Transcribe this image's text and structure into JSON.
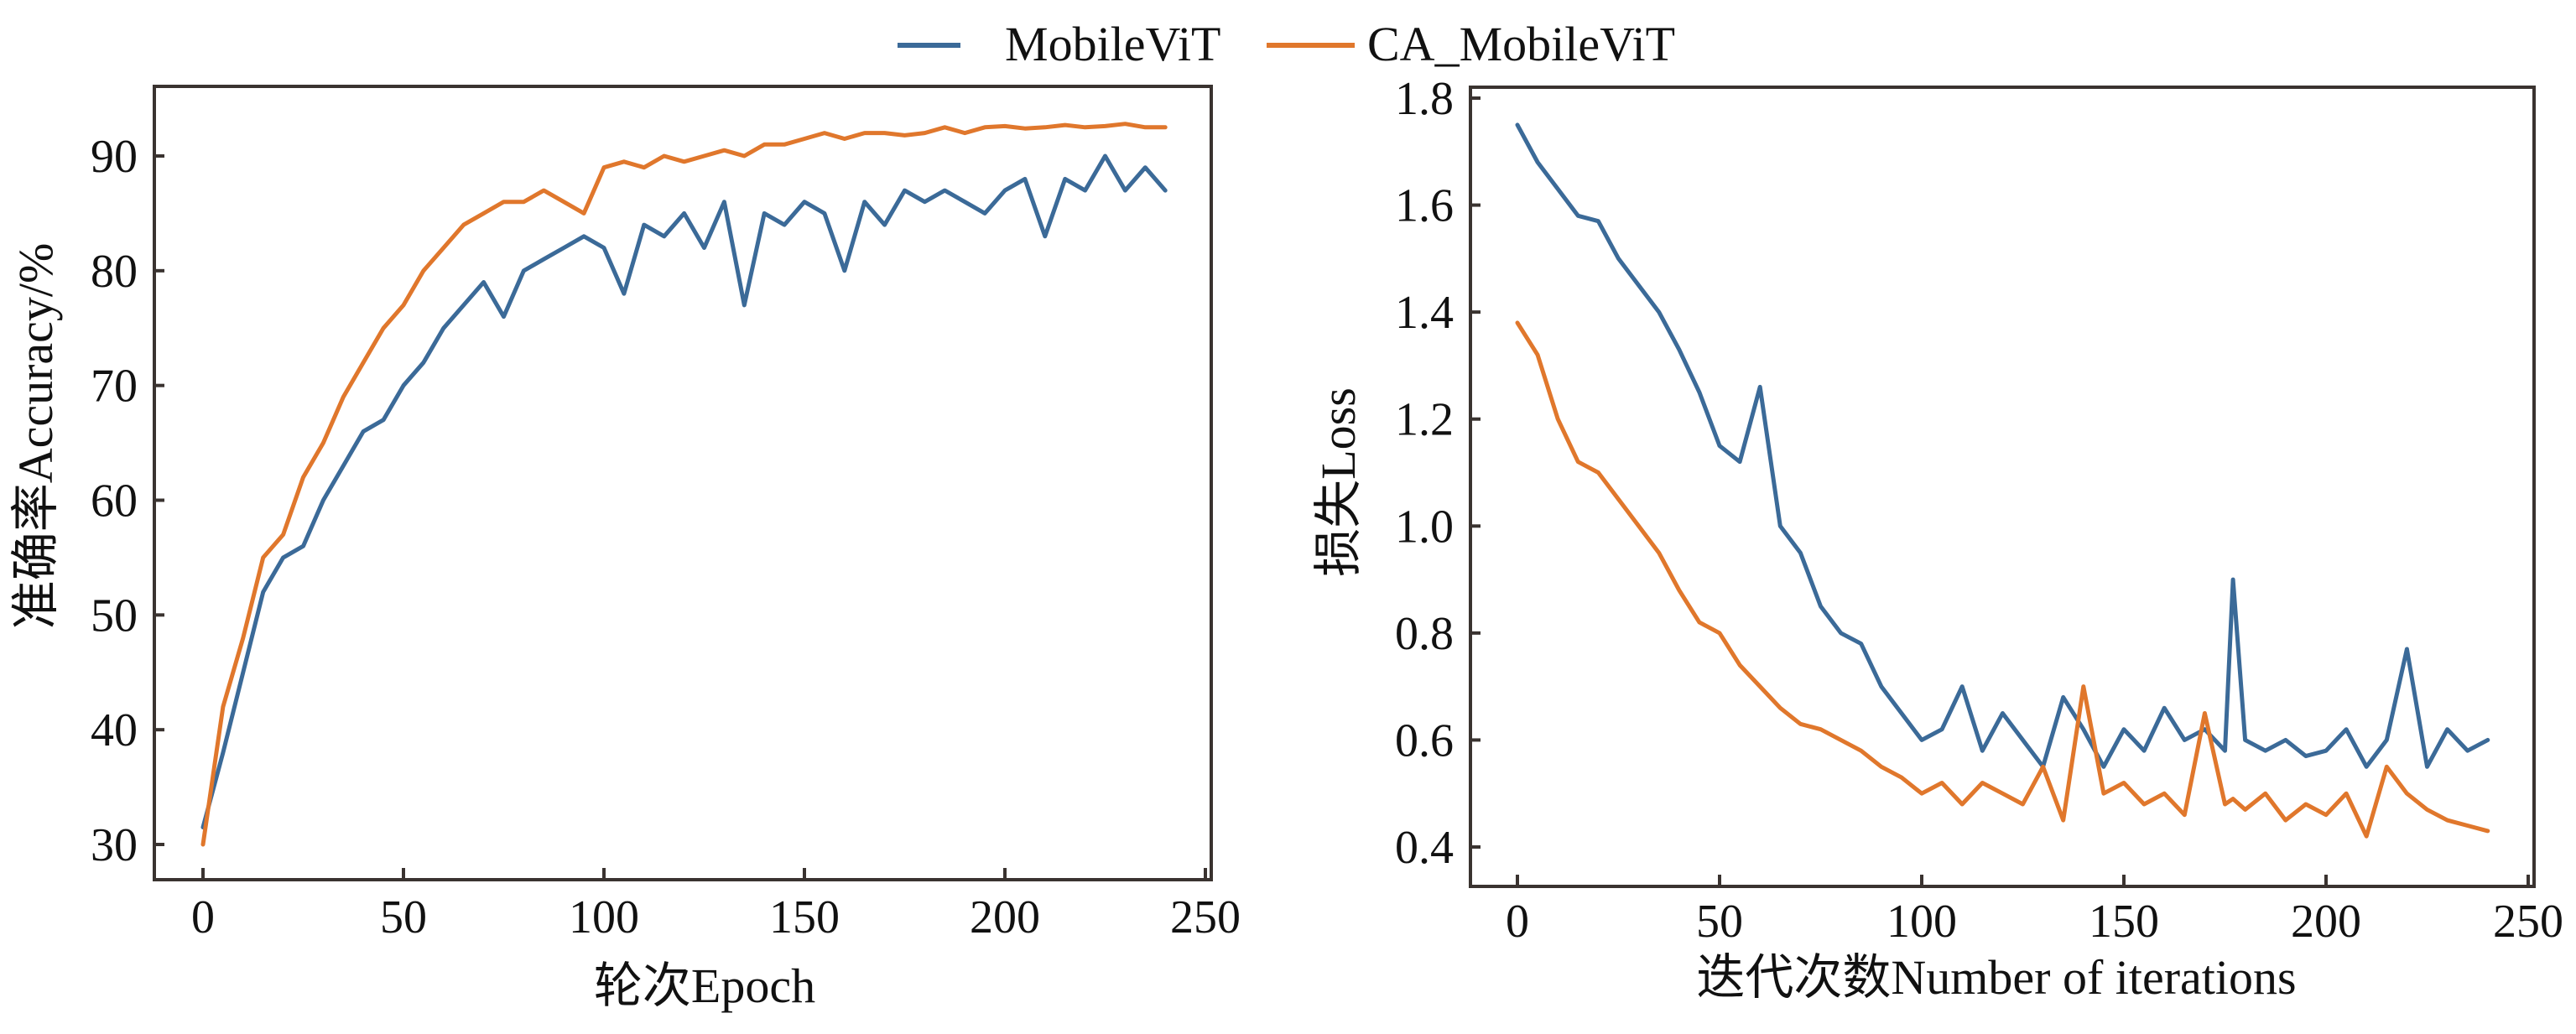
{
  "legend": {
    "items": [
      {
        "label": "MobileViT",
        "color": "#3b6a98"
      },
      {
        "label": "CA_MobileViT",
        "color": "#e0772c"
      }
    ]
  },
  "chart_data": [
    {
      "type": "line",
      "title": "",
      "xlabel": "轮次Epoch",
      "ylabel": "准确率Accuracy/%",
      "xlim": [
        -6,
        250
      ],
      "ylim": [
        27,
        95
      ],
      "xticks": [
        0,
        50,
        100,
        150,
        200,
        250
      ],
      "yticks": [
        30,
        40,
        50,
        60,
        70,
        80,
        90
      ],
      "grid": false,
      "legend_position": "top-center",
      "x": [
        0,
        5,
        10,
        15,
        20,
        25,
        30,
        35,
        40,
        45,
        50,
        55,
        60,
        65,
        70,
        75,
        80,
        85,
        90,
        95,
        100,
        105,
        110,
        115,
        120,
        125,
        130,
        135,
        140,
        145,
        150,
        155,
        160,
        165,
        170,
        175,
        180,
        185,
        190,
        195,
        200,
        205,
        210,
        215,
        220,
        225,
        230,
        235,
        240
      ],
      "series": [
        {
          "name": "MobileViT",
          "color": "#3b6a98",
          "values": [
            31.5,
            38,
            45,
            52,
            55,
            56,
            60,
            63,
            66,
            67,
            70,
            72,
            75,
            77,
            79,
            76,
            80,
            81,
            82,
            83,
            82,
            78,
            84,
            83,
            85,
            82,
            86,
            77,
            85,
            84,
            86,
            85,
            80,
            86,
            84,
            87,
            86,
            87,
            86,
            85,
            87,
            88,
            83,
            88,
            87,
            90,
            87,
            89,
            87
          ]
        },
        {
          "name": "CA_MobileViT",
          "color": "#e0772c",
          "values": [
            30,
            42,
            48,
            55,
            57,
            62,
            65,
            69,
            72,
            75,
            77,
            80,
            82,
            84,
            85,
            86,
            86,
            87,
            86,
            85,
            89,
            89.5,
            89,
            90,
            89.5,
            90,
            90.5,
            90,
            91,
            91,
            91.5,
            92,
            91.5,
            92,
            92,
            91.8,
            92,
            92.5,
            92,
            92.5,
            92.6,
            92.4,
            92.5,
            92.7,
            92.5,
            92.6,
            92.8,
            92.5,
            92.5
          ]
        }
      ]
    },
    {
      "type": "line",
      "title": "",
      "xlabel": "迭代次数Number of iterations",
      "ylabel": "损失Loss",
      "xlim": [
        -6,
        250
      ],
      "ylim": [
        0.33,
        1.82
      ],
      "xticks": [
        0,
        50,
        100,
        150,
        200,
        250
      ],
      "yticks": [
        0.4,
        0.6,
        0.8,
        1.0,
        1.2,
        1.4,
        1.6,
        1.8
      ],
      "ytick_labels": [
        "0.4",
        "0.6",
        "0.8",
        "1.0",
        "1.2",
        "1.4",
        "1.6",
        "1.8"
      ],
      "grid": false,
      "x": [
        0,
        5,
        10,
        15,
        20,
        25,
        30,
        35,
        40,
        45,
        50,
        55,
        60,
        65,
        70,
        75,
        80,
        85,
        90,
        95,
        100,
        105,
        110,
        115,
        120,
        125,
        130,
        135,
        140,
        145,
        150,
        155,
        160,
        165,
        170,
        175,
        177,
        180,
        185,
        190,
        195,
        200,
        205,
        210,
        215,
        220,
        225,
        230,
        235,
        240
      ],
      "series": [
        {
          "name": "MobileViT",
          "color": "#3b6a98",
          "values": [
            1.75,
            1.68,
            1.63,
            1.58,
            1.57,
            1.5,
            1.45,
            1.4,
            1.33,
            1.25,
            1.15,
            1.12,
            1.26,
            1.0,
            0.95,
            0.85,
            0.8,
            0.78,
            0.7,
            0.65,
            0.6,
            0.62,
            0.7,
            0.58,
            0.65,
            0.6,
            0.55,
            0.68,
            0.62,
            0.55,
            0.62,
            0.58,
            0.66,
            0.6,
            0.62,
            0.58,
            0.9,
            0.6,
            0.58,
            0.6,
            0.57,
            0.58,
            0.62,
            0.55,
            0.6,
            0.77,
            0.55,
            0.62,
            0.58,
            0.6
          ]
        },
        {
          "name": "CA_MobileViT",
          "color": "#e0772c",
          "values": [
            1.38,
            1.32,
            1.2,
            1.12,
            1.1,
            1.05,
            1.0,
            0.95,
            0.88,
            0.82,
            0.8,
            0.74,
            0.7,
            0.66,
            0.63,
            0.62,
            0.6,
            0.58,
            0.55,
            0.53,
            0.5,
            0.52,
            0.48,
            0.52,
            0.5,
            0.48,
            0.55,
            0.45,
            0.7,
            0.5,
            0.52,
            0.48,
            0.5,
            0.46,
            0.65,
            0.48,
            0.49,
            0.47,
            0.5,
            0.45,
            0.48,
            0.46,
            0.5,
            0.42,
            0.55,
            0.5,
            0.47,
            0.45,
            0.44,
            0.43
          ]
        }
      ]
    }
  ]
}
